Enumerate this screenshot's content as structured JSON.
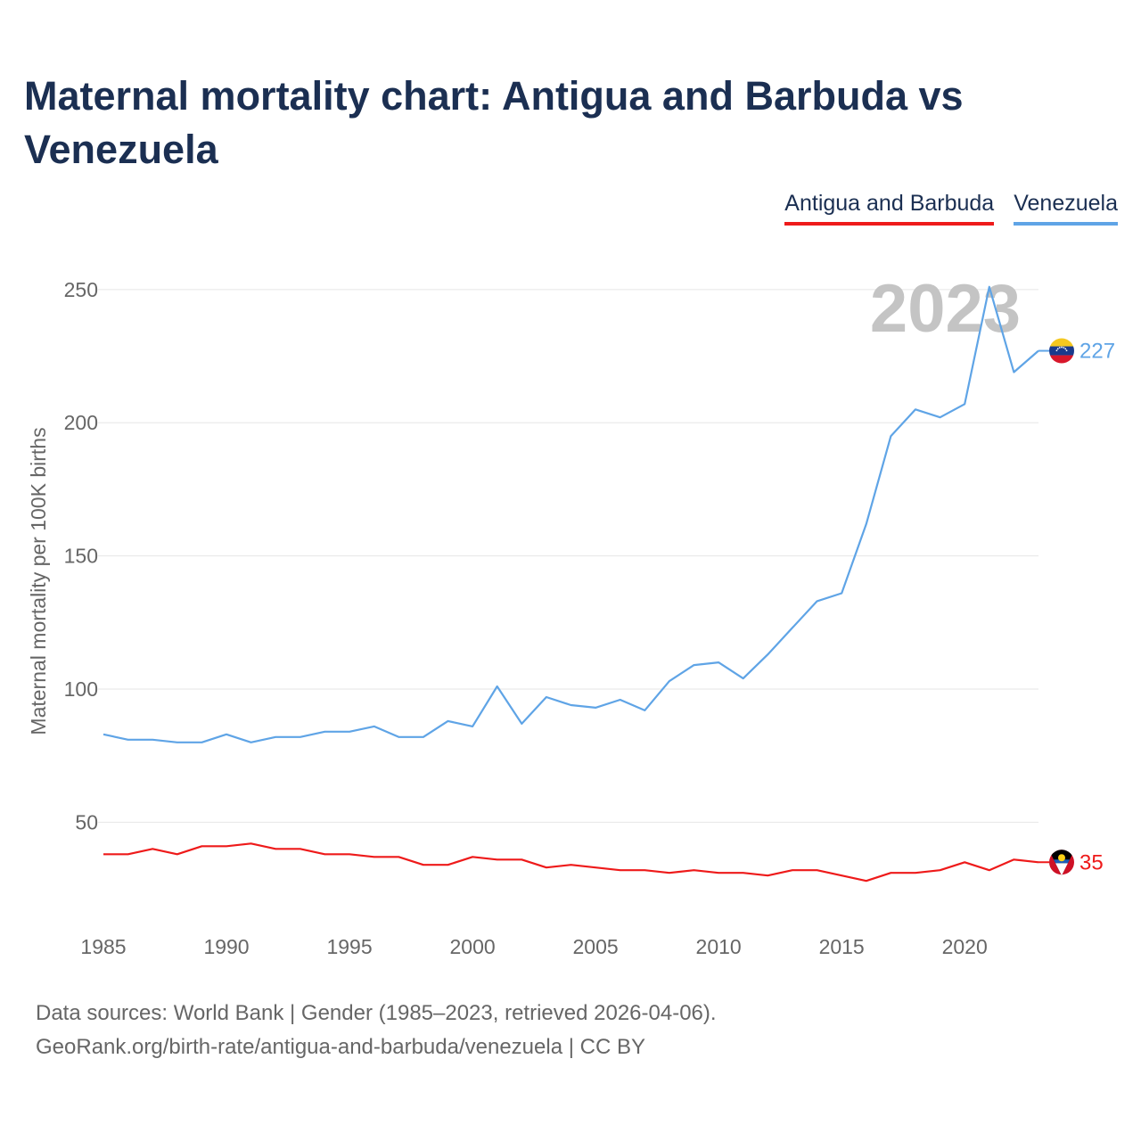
{
  "title": "Maternal mortality chart: Antigua and Barbuda vs Venezuela",
  "legend": {
    "items": [
      {
        "label": "Antigua and Barbuda",
        "color": "#ee1a1a"
      },
      {
        "label": "Venezuela",
        "color": "#5fa4e6"
      }
    ]
  },
  "footer": {
    "line1": "Data sources: World Bank | Gender (1985–2023, retrieved 2026-04-06).",
    "line2": "GeoRank.org/birth-rate/antigua-and-barbuda/venezuela | CC BY"
  },
  "chart_data": {
    "type": "line",
    "title": "Maternal mortality chart: Antigua and Barbuda vs Venezuela",
    "xlabel": "",
    "ylabel": "Maternal mortality per 100K births",
    "year_label": "2023",
    "xlim": [
      1985,
      2023
    ],
    "ylim": [
      14,
      265
    ],
    "x_ticks": [
      1985,
      1990,
      1995,
      2000,
      2005,
      2010,
      2015,
      2020
    ],
    "y_ticks": [
      50,
      100,
      150,
      200,
      250
    ],
    "grid": true,
    "x": [
      1985,
      1986,
      1987,
      1988,
      1989,
      1990,
      1991,
      1992,
      1993,
      1994,
      1995,
      1996,
      1997,
      1998,
      1999,
      2000,
      2001,
      2002,
      2003,
      2004,
      2005,
      2006,
      2007,
      2008,
      2009,
      2010,
      2011,
      2012,
      2013,
      2014,
      2015,
      2016,
      2017,
      2018,
      2019,
      2020,
      2021,
      2022,
      2023
    ],
    "series": [
      {
        "name": "Venezuela",
        "color": "#5fa4e6",
        "end_label": "227",
        "flag": "venezuela-flag-icon",
        "values": [
          83,
          81,
          81,
          80,
          80,
          83,
          80,
          82,
          82,
          84,
          84,
          86,
          82,
          82,
          88,
          86,
          101,
          87,
          97,
          94,
          93,
          96,
          92,
          103,
          109,
          110,
          104,
          113,
          123,
          133,
          136,
          162,
          195,
          205,
          202,
          207,
          251,
          219,
          227
        ]
      },
      {
        "name": "Antigua and Barbuda",
        "color": "#ee1a1a",
        "end_label": "35",
        "flag": "antigua-and-barbuda-flag-icon",
        "values": [
          38,
          38,
          40,
          38,
          41,
          41,
          42,
          40,
          40,
          38,
          38,
          37,
          37,
          34,
          34,
          37,
          36,
          36,
          33,
          34,
          33,
          32,
          32,
          31,
          32,
          31,
          31,
          30,
          32,
          32,
          30,
          28,
          31,
          31,
          32,
          35,
          32,
          36,
          35
        ]
      }
    ]
  }
}
